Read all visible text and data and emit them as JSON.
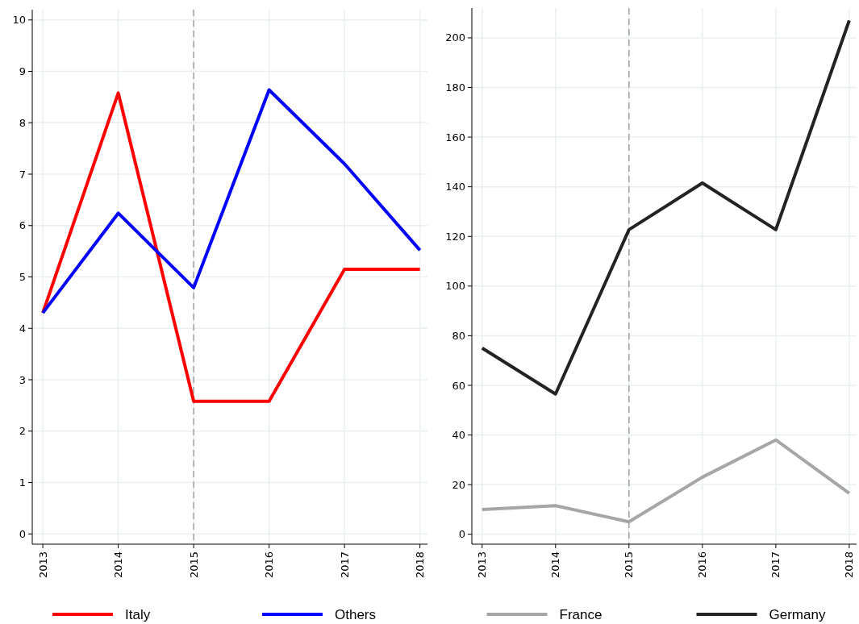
{
  "chart_data": [
    {
      "type": "line",
      "x": [
        2013,
        2014,
        2015,
        2016,
        2017,
        2018
      ],
      "xlim": [
        2012.86,
        2018.1
      ],
      "xticks": [
        2013,
        2014,
        2015,
        2016,
        2017,
        2018
      ],
      "ylim": [
        -0.2,
        10.2
      ],
      "yticks": [
        0,
        1,
        2,
        3,
        4,
        5,
        6,
        7,
        8,
        9,
        10
      ],
      "grid": true,
      "legend": "bottom",
      "line_style": "solid",
      "series": [
        {
          "name": "Italy",
          "color": "#ff0000",
          "values": [
            4.3,
            8.58,
            2.58,
            2.58,
            5.15,
            5.15
          ]
        },
        {
          "name": "Others",
          "color": "#0000ff",
          "values": [
            4.3,
            6.24,
            4.79,
            8.64,
            7.2,
            5.52
          ]
        }
      ],
      "ref_lines": [
        {
          "axis": "x",
          "value": 2015,
          "color": "#a0a0a0",
          "line_style": "dashed"
        }
      ]
    },
    {
      "type": "line",
      "x": [
        2013,
        2014,
        2015,
        2016,
        2017,
        2018
      ],
      "xlim": [
        2012.86,
        2018.1
      ],
      "xticks": [
        2013,
        2014,
        2015,
        2016,
        2017,
        2018
      ],
      "ylim": [
        -4,
        212
      ],
      "yticks": [
        0,
        20,
        40,
        60,
        80,
        100,
        120,
        140,
        160,
        180,
        200
      ],
      "grid": true,
      "legend": "bottom",
      "line_style": "solid",
      "series": [
        {
          "name": "France",
          "color": "#a6a6a6",
          "values": [
            10,
            11.5,
            5,
            23,
            38,
            16.5
          ]
        },
        {
          "name": "Germany",
          "color": "#232323",
          "values": [
            75,
            56.5,
            122.7,
            141.5,
            122.7,
            207
          ]
        }
      ],
      "ref_lines": [
        {
          "axis": "x",
          "value": 2015,
          "color": "#a0a0a0",
          "line_style": "dashed"
        }
      ]
    }
  ]
}
